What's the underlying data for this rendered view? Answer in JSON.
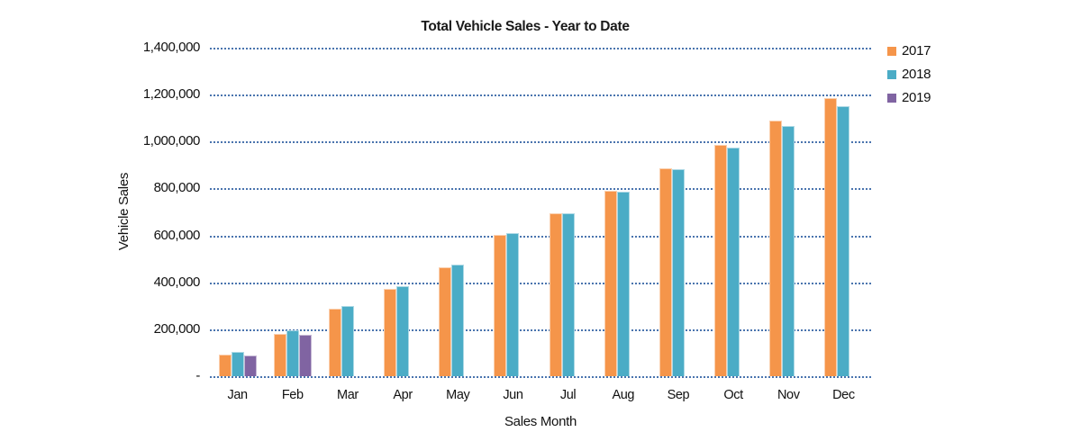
{
  "chart_data": {
    "type": "bar",
    "title": "Total Vehicle Sales - Year to Date",
    "xlabel": "Sales Month",
    "ylabel": "Vehicle Sales",
    "categories": [
      "Jan",
      "Feb",
      "Mar",
      "Apr",
      "May",
      "Jun",
      "Jul",
      "Aug",
      "Sep",
      "Oct",
      "Nov",
      "Dec"
    ],
    "series": [
      {
        "name": "2017",
        "color": "#F5954A",
        "values": [
          93000,
          181000,
          287000,
          373000,
          464000,
          604000,
          696000,
          790000,
          888000,
          986000,
          1089000,
          1187000
        ]
      },
      {
        "name": "2018",
        "color": "#4BACC6",
        "values": [
          102000,
          195000,
          299000,
          384000,
          476000,
          611000,
          695000,
          785000,
          882000,
          973000,
          1065000,
          1152000
        ]
      },
      {
        "name": "2019",
        "color": "#8064A2",
        "values": [
          90000,
          176000,
          null,
          null,
          null,
          null,
          null,
          null,
          null,
          null,
          null,
          null
        ]
      }
    ],
    "ylim": [
      0,
      1400000
    ],
    "ytick_step": 200000,
    "ytick_labels": [
      "-",
      "200,000",
      "400,000",
      "600,000",
      "800,000",
      "1,000,000",
      "1,200,000",
      "1,400,000"
    ],
    "grid": true,
    "gridline_color": "#4a74ae",
    "legend_position": "right"
  }
}
